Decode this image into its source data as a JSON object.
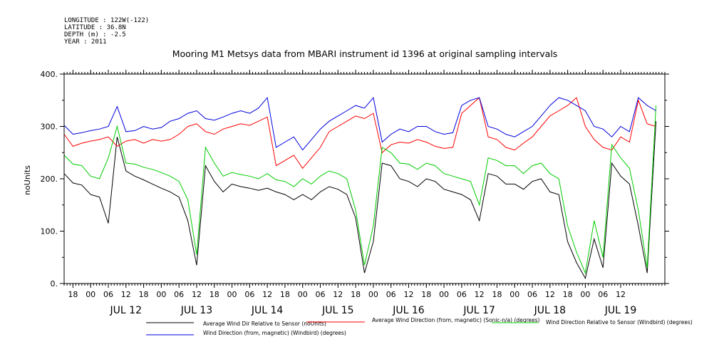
{
  "meta": {
    "lines": [
      "LONGITUDE : 122W(-122)",
      "LATITUDE : 36.8N",
      "DEPTH (m) : -2.5",
      "YEAR : 2011"
    ]
  },
  "chart_data": {
    "type": "line",
    "title": "Mooring M1 Metsys data from MBARI instrument id 1396 at original sampling intervals",
    "ylabel": "noUnits",
    "xlabel": "",
    "ylim": [
      0,
      400
    ],
    "xlim_hours": [
      -9,
      195
    ],
    "y_ticks": [
      "0.",
      "100.",
      "200.",
      "300.",
      "400."
    ],
    "x_tick_labels": [
      "18",
      "00",
      "06",
      "12",
      "18",
      "00",
      "06",
      "12",
      "18",
      "00",
      "06",
      "12",
      "18",
      "00",
      "06",
      "12",
      "18",
      "00",
      "06",
      "12",
      "18",
      "00",
      "06",
      "12",
      "18",
      "00",
      "06",
      "12",
      "18",
      "00",
      "06",
      "12"
    ],
    "x_tick_start_hour": 18,
    "x_tick_step_hours": 6,
    "date_labels": [
      "JUL 12",
      "JUL 13",
      "JUL 14",
      "JUL 15",
      "JUL 16",
      "JUL 17",
      "JUL 18",
      "JUL 19"
    ],
    "grid": false,
    "legend_position": "bottom",
    "series": [
      {
        "name": "Average Wind Dir Relative to Sensor (noUnits)",
        "color": "#000000",
        "x": [
          -9,
          -6,
          -3,
          0,
          3,
          6,
          9,
          12,
          15,
          18,
          21,
          24,
          27,
          30,
          33,
          36,
          39,
          42,
          45,
          48,
          51,
          54,
          57,
          60,
          63,
          66,
          69,
          72,
          75,
          78,
          81,
          84,
          87,
          90,
          93,
          96,
          99,
          102,
          105,
          108,
          111,
          114,
          117,
          120,
          123,
          126,
          129,
          132,
          135,
          138,
          141,
          144,
          147,
          150,
          153,
          156,
          159,
          162,
          165,
          168,
          171,
          174,
          177,
          180,
          183,
          186,
          189,
          192
        ],
        "y": [
          210,
          192,
          188,
          170,
          165,
          115,
          280,
          215,
          205,
          198,
          190,
          182,
          175,
          165,
          120,
          35,
          225,
          195,
          175,
          190,
          185,
          182,
          178,
          182,
          175,
          170,
          160,
          170,
          160,
          175,
          185,
          180,
          170,
          125,
          20,
          80,
          230,
          225,
          200,
          195,
          185,
          200,
          195,
          180,
          175,
          170,
          160,
          120,
          210,
          205,
          190,
          190,
          180,
          195,
          200,
          175,
          170,
          80,
          40,
          10,
          85,
          30,
          230,
          205,
          190,
          110,
          20,
          310
        ]
      },
      {
        "name": "Average Wind Direction (from, magnetic) (Sonic-n/a) (degrees)",
        "color": "#ff0000",
        "x": [
          -9,
          -6,
          -3,
          0,
          3,
          6,
          9,
          12,
          15,
          18,
          21,
          24,
          27,
          30,
          33,
          36,
          39,
          42,
          45,
          48,
          51,
          54,
          57,
          60,
          63,
          66,
          69,
          72,
          75,
          78,
          81,
          84,
          87,
          90,
          93,
          96,
          99,
          102,
          105,
          108,
          111,
          114,
          117,
          120,
          123,
          126,
          129,
          132,
          135,
          138,
          141,
          144,
          147,
          150,
          153,
          156,
          159,
          162,
          165,
          168,
          171,
          174,
          177,
          180,
          183,
          186,
          189,
          192
        ],
        "y": [
          285,
          262,
          268,
          272,
          275,
          280,
          262,
          272,
          275,
          268,
          275,
          272,
          275,
          285,
          300,
          305,
          290,
          285,
          295,
          300,
          305,
          302,
          310,
          318,
          225,
          235,
          245,
          220,
          240,
          260,
          290,
          300,
          310,
          320,
          315,
          325,
          250,
          265,
          270,
          268,
          275,
          270,
          262,
          258,
          260,
          325,
          340,
          355,
          280,
          275,
          260,
          255,
          268,
          280,
          300,
          320,
          330,
          340,
          355,
          300,
          275,
          260,
          255,
          280,
          270,
          350,
          305,
          300
        ]
      },
      {
        "name": "Wind Direction Relative to Sensor (Windbird) (degrees)",
        "color": "#00cc00",
        "x": [
          -9,
          -6,
          -3,
          0,
          3,
          6,
          9,
          12,
          15,
          18,
          21,
          24,
          27,
          30,
          33,
          36,
          39,
          42,
          45,
          48,
          51,
          54,
          57,
          60,
          63,
          66,
          69,
          72,
          75,
          78,
          81,
          84,
          87,
          90,
          93,
          96,
          99,
          102,
          105,
          108,
          111,
          114,
          117,
          120,
          123,
          126,
          129,
          132,
          135,
          138,
          141,
          144,
          147,
          150,
          153,
          156,
          159,
          162,
          165,
          168,
          171,
          174,
          177,
          180,
          183,
          186,
          189,
          192
        ],
        "y": [
          245,
          228,
          225,
          205,
          200,
          240,
          300,
          230,
          228,
          222,
          218,
          212,
          205,
          195,
          160,
          55,
          260,
          230,
          205,
          212,
          208,
          205,
          200,
          210,
          198,
          195,
          185,
          200,
          190,
          205,
          215,
          210,
          200,
          140,
          35,
          110,
          260,
          250,
          230,
          228,
          218,
          230,
          225,
          210,
          205,
          200,
          195,
          150,
          240,
          235,
          225,
          225,
          210,
          225,
          230,
          210,
          200,
          110,
          60,
          20,
          120,
          50,
          265,
          240,
          220,
          140,
          30,
          340
        ]
      },
      {
        "name": "Wind Direction (from, magnetic) (Windbird) (degrees)",
        "color": "#0000dd",
        "x": [
          -9,
          -6,
          -3,
          0,
          3,
          6,
          9,
          12,
          15,
          18,
          21,
          24,
          27,
          30,
          33,
          36,
          39,
          42,
          45,
          48,
          51,
          54,
          57,
          60,
          63,
          66,
          69,
          72,
          75,
          78,
          81,
          84,
          87,
          90,
          93,
          96,
          99,
          102,
          105,
          108,
          111,
          114,
          117,
          120,
          123,
          126,
          129,
          132,
          135,
          138,
          141,
          144,
          147,
          150,
          153,
          156,
          159,
          162,
          165,
          168,
          171,
          174,
          177,
          180,
          183,
          186,
          189,
          192
        ],
        "y": [
          302,
          285,
          288,
          292,
          295,
          300,
          338,
          290,
          292,
          300,
          295,
          298,
          310,
          315,
          325,
          330,
          315,
          312,
          318,
          325,
          330,
          325,
          335,
          355,
          260,
          270,
          280,
          255,
          275,
          295,
          310,
          320,
          330,
          340,
          335,
          355,
          270,
          285,
          295,
          290,
          300,
          300,
          290,
          285,
          288,
          340,
          350,
          355,
          300,
          295,
          285,
          280,
          290,
          300,
          320,
          340,
          355,
          350,
          340,
          330,
          300,
          295,
          280,
          300,
          290,
          355,
          340,
          330
        ]
      }
    ]
  }
}
